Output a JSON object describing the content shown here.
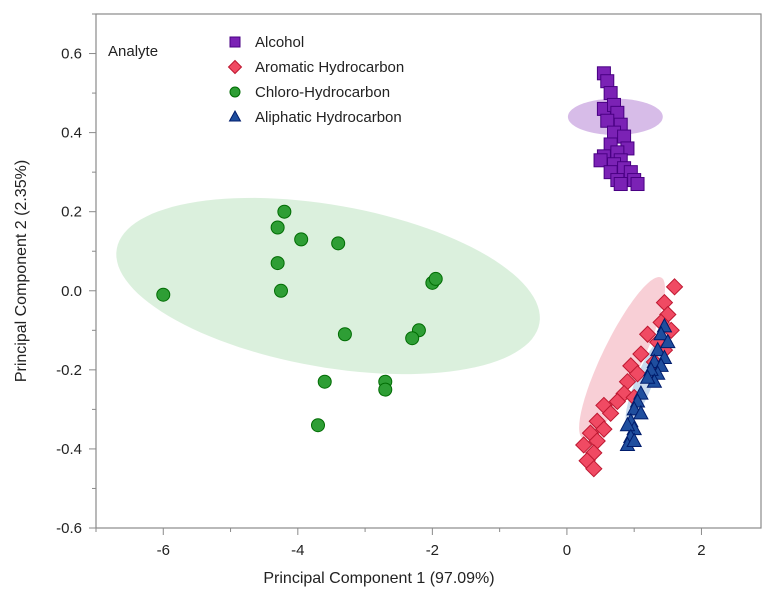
{
  "chart_data": {
    "type": "scatter",
    "title": "",
    "xlabel": "Principal Component 1 (97.09%)",
    "ylabel": "Principal Component 2 (2.35%)",
    "xlim": [
      -7.0,
      2.9
    ],
    "ylim": [
      -0.6,
      0.7
    ],
    "x_ticks": [
      -6,
      -4,
      -2,
      0,
      2
    ],
    "y_ticks": [
      0.6,
      0.4,
      0.2,
      0.0,
      -0.2,
      -0.4,
      -0.6
    ],
    "x_tick_labels": [
      "-6",
      "-4",
      "-2",
      "0",
      "2"
    ],
    "y_tick_labels": [
      "0.6",
      "0.4",
      "0.2",
      "0.0",
      "-0.2",
      "-0.4",
      "-0.6"
    ],
    "legend": {
      "title": "Analyte",
      "placement": "top-left"
    },
    "grid": false,
    "series": [
      {
        "name": "Alcohol",
        "marker": "square",
        "color": "#7B22B5",
        "ellipse_color": "#C9A6E0",
        "ellipse": {
          "cx": 0.72,
          "cy": 0.44,
          "rx": 0.27,
          "ry": 0.12,
          "angle_deg": 90
        },
        "points": [
          [
            0.55,
            0.55
          ],
          [
            0.6,
            0.53
          ],
          [
            0.65,
            0.5
          ],
          [
            0.55,
            0.46
          ],
          [
            0.7,
            0.47
          ],
          [
            0.75,
            0.45
          ],
          [
            0.6,
            0.43
          ],
          [
            0.8,
            0.42
          ],
          [
            0.7,
            0.4
          ],
          [
            0.85,
            0.39
          ],
          [
            0.65,
            0.37
          ],
          [
            0.9,
            0.36
          ],
          [
            0.75,
            0.35
          ],
          [
            0.8,
            0.33
          ],
          [
            0.55,
            0.34
          ],
          [
            0.5,
            0.33
          ],
          [
            0.7,
            0.32
          ],
          [
            0.85,
            0.31
          ],
          [
            0.95,
            0.3
          ],
          [
            0.65,
            0.3
          ],
          [
            0.75,
            0.28
          ],
          [
            1.0,
            0.28
          ],
          [
            1.05,
            0.27
          ],
          [
            0.8,
            0.27
          ]
        ]
      },
      {
        "name": "Aromatic Hydrocarbon",
        "marker": "diamond",
        "color": "#F04A63",
        "ellipse_color": "#F6BFC8",
        "ellipse": {
          "cx": 0.82,
          "cy": -0.17,
          "rx": 1.33,
          "ry": 0.05,
          "angle_deg": 64.1
        },
        "points": [
          [
            1.6,
            0.01
          ],
          [
            1.45,
            -0.03
          ],
          [
            1.5,
            -0.06
          ],
          [
            1.4,
            -0.08
          ],
          [
            1.55,
            -0.1
          ],
          [
            1.2,
            -0.11
          ],
          [
            1.35,
            -0.13
          ],
          [
            1.45,
            -0.15
          ],
          [
            1.1,
            -0.16
          ],
          [
            1.3,
            -0.18
          ],
          [
            0.95,
            -0.19
          ],
          [
            1.05,
            -0.21
          ],
          [
            0.9,
            -0.23
          ],
          [
            0.85,
            -0.26
          ],
          [
            1.0,
            -0.27
          ],
          [
            0.75,
            -0.28
          ],
          [
            0.55,
            -0.29
          ],
          [
            0.65,
            -0.31
          ],
          [
            0.45,
            -0.33
          ],
          [
            0.55,
            -0.35
          ],
          [
            0.35,
            -0.36
          ],
          [
            0.45,
            -0.38
          ],
          [
            0.25,
            -0.39
          ],
          [
            0.4,
            -0.41
          ],
          [
            0.3,
            -0.43
          ],
          [
            0.4,
            -0.45
          ]
        ]
      },
      {
        "name": "Chloro-Hydrocarbon",
        "marker": "circle",
        "color": "#2E9E35",
        "ellipse_color": "#CFEBD1",
        "ellipse": {
          "cx": -3.55,
          "cy": 0.012,
          "rx": 3.19,
          "ry": 0.205,
          "angle_deg": -10
        },
        "points": [
          [
            -6.0,
            -0.01
          ],
          [
            -4.2,
            0.2
          ],
          [
            -4.3,
            0.16
          ],
          [
            -3.95,
            0.13
          ],
          [
            -3.4,
            0.12
          ],
          [
            -4.3,
            0.07
          ],
          [
            -4.25,
            0.0
          ],
          [
            -2.0,
            0.02
          ],
          [
            -1.95,
            0.03
          ],
          [
            -3.3,
            -0.11
          ],
          [
            -2.2,
            -0.1
          ],
          [
            -2.3,
            -0.12
          ],
          [
            -3.6,
            -0.23
          ],
          [
            -2.7,
            -0.23
          ],
          [
            -2.7,
            -0.25
          ],
          [
            -3.7,
            -0.34
          ]
        ]
      },
      {
        "name": "Aliphatic Hydrocarbon",
        "marker": "triangle",
        "color": "#1F4E9E",
        "ellipse_color": "#B7CDE8",
        "ellipse": {
          "cx": 1.15,
          "cy": -0.23,
          "rx": 0.67,
          "ry": 0.022,
          "angle_deg": 68
        },
        "points": [
          [
            1.45,
            -0.09
          ],
          [
            1.4,
            -0.11
          ],
          [
            1.5,
            -0.13
          ],
          [
            1.35,
            -0.15
          ],
          [
            1.45,
            -0.17
          ],
          [
            1.3,
            -0.18
          ],
          [
            1.4,
            -0.19
          ],
          [
            1.35,
            -0.21
          ],
          [
            1.25,
            -0.2
          ],
          [
            1.3,
            -0.23
          ],
          [
            1.2,
            -0.22
          ],
          [
            1.1,
            -0.26
          ],
          [
            1.05,
            -0.28
          ],
          [
            1.0,
            -0.3
          ],
          [
            1.1,
            -0.31
          ],
          [
            0.95,
            -0.33
          ],
          [
            1.0,
            -0.35
          ],
          [
            0.9,
            -0.34
          ],
          [
            0.95,
            -0.37
          ],
          [
            0.9,
            -0.39
          ],
          [
            1.0,
            -0.38
          ]
        ]
      }
    ]
  }
}
